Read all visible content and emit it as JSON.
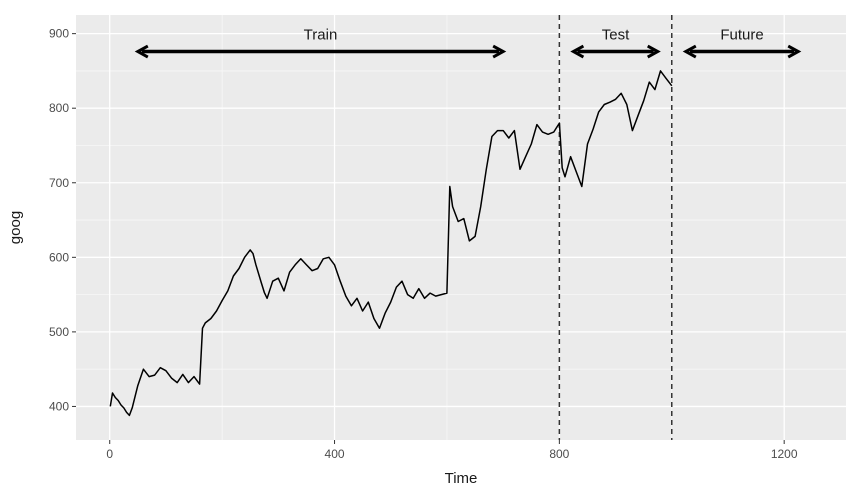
{
  "chart_data": {
    "type": "line",
    "title": "",
    "xlabel": "Time",
    "ylabel": "goog",
    "xlim": [
      -60,
      1310
    ],
    "ylim": [
      355,
      925
    ],
    "x_ticks": [
      0,
      400,
      800,
      1200
    ],
    "x_tick_labels": [
      "0",
      "400",
      "800",
      "1200"
    ],
    "y_ticks": [
      400,
      500,
      600,
      700,
      800,
      900
    ],
    "y_tick_labels": [
      "400",
      "500",
      "600",
      "700",
      "800",
      "900"
    ],
    "grid": true,
    "legend": "none",
    "colors": {
      "panel_background": "#ebebeb",
      "grid_major": "#ffffff",
      "line": "#000000"
    },
    "vlines": [
      {
        "x": 800,
        "style": "dashed"
      },
      {
        "x": 1000,
        "style": "dashed"
      }
    ],
    "annotations": [
      {
        "label": "Train",
        "x_start": 50,
        "x_end": 700,
        "y": 876
      },
      {
        "label": "Test",
        "x_start": 825,
        "x_end": 975,
        "y": 876
      },
      {
        "label": "Future",
        "x_start": 1025,
        "x_end": 1225,
        "y": 876
      }
    ],
    "series": [
      {
        "x": [
          1,
          5,
          10,
          15,
          20,
          25,
          30,
          35,
          40,
          50,
          60,
          70,
          80,
          90,
          100,
          110,
          120,
          130,
          140,
          150,
          160,
          165,
          170,
          180,
          190,
          200,
          210,
          220,
          230,
          240,
          250,
          255,
          260,
          270,
          275,
          280,
          290,
          300,
          310,
          320,
          330,
          340,
          350,
          360,
          370,
          380,
          390,
          400,
          410,
          420,
          430,
          440,
          450,
          460,
          470,
          480,
          490,
          500,
          510,
          520,
          530,
          540,
          550,
          560,
          570,
          580,
          590,
          600,
          605,
          610,
          620,
          630,
          640,
          650,
          660,
          670,
          680,
          690,
          700,
          710,
          720,
          730,
          740,
          750,
          760,
          770,
          780,
          790,
          800,
          805,
          810,
          820,
          830,
          840,
          850,
          860,
          870,
          880,
          890,
          900,
          910,
          920,
          930,
          940,
          950,
          960,
          970,
          980,
          990,
          1000
        ],
        "y": [
          400,
          418,
          412,
          408,
          402,
          398,
          392,
          388,
          398,
          428,
          450,
          440,
          442,
          452,
          448,
          438,
          432,
          443,
          432,
          440,
          430,
          505,
          512,
          518,
          528,
          542,
          555,
          575,
          585,
          600,
          610,
          605,
          590,
          565,
          553,
          545,
          568,
          572,
          555,
          580,
          590,
          598,
          590,
          582,
          585,
          598,
          600,
          590,
          568,
          548,
          535,
          545,
          528,
          540,
          518,
          505,
          525,
          540,
          560,
          568,
          550,
          545,
          558,
          545,
          552,
          548,
          550,
          552,
          695,
          668,
          648,
          652,
          622,
          628,
          668,
          718,
          762,
          770,
          770,
          760,
          770,
          718,
          735,
          752,
          778,
          768,
          765,
          768,
          780,
          720,
          708,
          735,
          715,
          695,
          752,
          772,
          795,
          805,
          808,
          812,
          820,
          805,
          770,
          790,
          810,
          835,
          825,
          850,
          840,
          830
        ]
      }
    ]
  }
}
